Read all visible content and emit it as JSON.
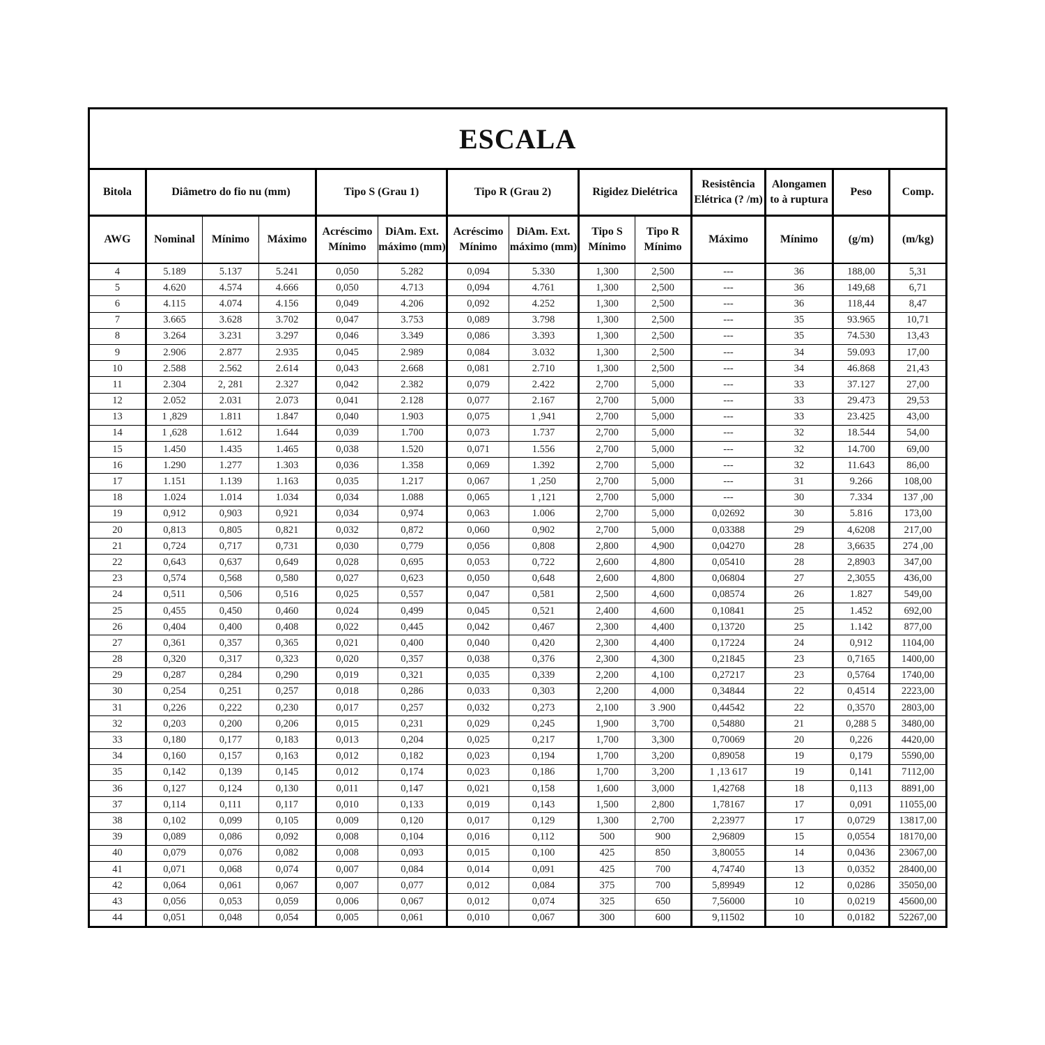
{
  "title": "ESCALA",
  "header_row1": [
    "Bitola",
    "Diâmetro do fio nu (mm)",
    "Tipo S (Grau 1)",
    "Tipo R (Grau 2)",
    "Rigidez Dielétrica",
    "Resistência Elétrica (? /m)",
    "Alongamen to à ruptura",
    "Peso",
    "Comp."
  ],
  "header_row2": [
    "AWG",
    "Nominal",
    "Mínimo",
    "Máximo",
    "Acréscimo Mínimo",
    "DiAm. Ext. máximo (mm)",
    "Acréscimo Mínimo",
    "DiAm. Ext. máximo (mm)",
    "Tipo S Mínimo",
    "Tipo R Mínimo",
    "Máximo",
    "Mínimo",
    "(g/m)",
    "(m/kg)"
  ],
  "rows": [
    [
      "4",
      "5.189",
      "5.137",
      "5.241",
      "0,050",
      "5.282",
      "0,094",
      "5.330",
      "1,300",
      "2,500",
      "---",
      "36",
      "188,00",
      "5,31"
    ],
    [
      "5",
      "4.620",
      "4.574",
      "4.666",
      "0,050",
      "4.713",
      "0,094",
      "4.761",
      "1,300",
      "2,500",
      "---",
      "36",
      "149,68",
      "6,71"
    ],
    [
      "6",
      "4.115",
      "4.074",
      "4.156",
      "0,049",
      "4.206",
      "0,092",
      "4.252",
      "1,300",
      "2,500",
      "---",
      "36",
      "118,44",
      "8,47"
    ],
    [
      "7",
      "3.665",
      "3.628",
      "3.702",
      "0,047",
      "3.753",
      "0,089",
      "3.798",
      "1,300",
      "2,500",
      "---",
      "35",
      "93.965",
      "10,71"
    ],
    [
      "8",
      "3.264",
      "3.231",
      "3.297",
      "0,046",
      "3.349",
      "0,086",
      "3.393",
      "1,300",
      "2,500",
      "---",
      "35",
      "74.530",
      "13,43"
    ],
    [
      "9",
      "2.906",
      "2.877",
      "2.935",
      "0,045",
      "2.989",
      "0,084",
      "3.032",
      "1,300",
      "2,500",
      "---",
      "34",
      "59.093",
      "17,00"
    ],
    [
      "10",
      "2.588",
      "2.562",
      "2.614",
      "0,043",
      "2.668",
      "0,081",
      "2.710",
      "1,300",
      "2,500",
      "---",
      "34",
      "46.868",
      "21,43"
    ],
    [
      "11",
      "2.304",
      "2, 281",
      "2.327",
      "0,042",
      "2.382",
      "0,079",
      "2.422",
      "2,700",
      "5,000",
      "---",
      "33",
      "37.127",
      "27,00"
    ],
    [
      "12",
      "2.052",
      "2.031",
      "2.073",
      "0,041",
      "2.128",
      "0,077",
      "2.167",
      "2,700",
      "5,000",
      "---",
      "33",
      "29.473",
      "29,53"
    ],
    [
      "13",
      "1 ,829",
      "1.811",
      "1.847",
      "0,040",
      "1.903",
      "0,075",
      "1 ,941",
      "2,700",
      "5,000",
      "---",
      "33",
      "23.425",
      "43,00"
    ],
    [
      "14",
      "1 ,628",
      "1.612",
      "1.644",
      "0,039",
      "1.700",
      "0,073",
      "1.737",
      "2,700",
      "5,000",
      "---",
      "32",
      "18.544",
      "54,00"
    ],
    [
      "15",
      "1.450",
      "1.435",
      "1.465",
      "0,038",
      "1.520",
      "0,071",
      "1.556",
      "2,700",
      "5,000",
      "---",
      "32",
      "14.700",
      "69,00"
    ],
    [
      "16",
      "1.290",
      "1.277",
      "1.303",
      "0,036",
      "1.358",
      "0,069",
      "1.392",
      "2,700",
      "5,000",
      "---",
      "32",
      "11.643",
      "86,00"
    ],
    [
      "17",
      "1.151",
      "1.139",
      "1.163",
      "0,035",
      "1.217",
      "0,067",
      "1 ,250",
      "2,700",
      "5,000",
      "---",
      "31",
      "9.266",
      "108,00"
    ],
    [
      "18",
      "1.024",
      "1.014",
      "1.034",
      "0,034",
      "1.088",
      "0,065",
      "1 ,121",
      "2,700",
      "5,000",
      "---",
      "30",
      "7.334",
      "137 ,00"
    ],
    [
      "19",
      "0,912",
      "0,903",
      "0,921",
      "0,034",
      "0,974",
      "0,063",
      "1.006",
      "2,700",
      "5,000",
      "0,02692",
      "30",
      "5.816",
      "173,00"
    ],
    [
      "20",
      "0,813",
      "0,805",
      "0,821",
      "0,032",
      "0,872",
      "0,060",
      "0,902",
      "2,700",
      "5,000",
      "0,03388",
      "29",
      "4,6208",
      "217,00"
    ],
    [
      "21",
      "0,724",
      "0,717",
      "0,731",
      "0,030",
      "0,779",
      "0,056",
      "0,808",
      "2,800",
      "4,900",
      "0,04270",
      "28",
      "3,6635",
      "274 ,00"
    ],
    [
      "22",
      "0,643",
      "0,637",
      "0,649",
      "0,028",
      "0,695",
      "0,053",
      "0,722",
      "2,600",
      "4,800",
      "0,05410",
      "28",
      "2,8903",
      "347,00"
    ],
    [
      "23",
      "0,574",
      "0,568",
      "0,580",
      "0,027",
      "0,623",
      "0,050",
      "0,648",
      "2,600",
      "4,800",
      "0,06804",
      "27",
      "2,3055",
      "436,00"
    ],
    [
      "24",
      "0,511",
      "0,506",
      "0,516",
      "0,025",
      "0,557",
      "0,047",
      "0,581",
      "2,500",
      "4,600",
      "0,08574",
      "26",
      "1.827",
      "549,00"
    ],
    [
      "25",
      "0,455",
      "0,450",
      "0,460",
      "0,024",
      "0,499",
      "0,045",
      "0,521",
      "2,400",
      "4,600",
      "0,10841",
      "25",
      "1.452",
      "692,00"
    ],
    [
      "26",
      "0,404",
      "0,400",
      "0,408",
      "0,022",
      "0,445",
      "0,042",
      "0,467",
      "2,300",
      "4,400",
      "0,13720",
      "25",
      "1.142",
      "877,00"
    ],
    [
      "27",
      "0,361",
      "0,357",
      "0,365",
      "0,021",
      "0,400",
      "0,040",
      "0,420",
      "2,300",
      "4,400",
      "0,17224",
      "24",
      "0,912",
      "1104,00"
    ],
    [
      "28",
      "0,320",
      "0,317",
      "0,323",
      "0,020",
      "0,357",
      "0,038",
      "0,376",
      "2,300",
      "4,300",
      "0,21845",
      "23",
      "0,7165",
      "1400,00"
    ],
    [
      "29",
      "0,287",
      "0,284",
      "0,290",
      "0,019",
      "0,321",
      "0,035",
      "0,339",
      "2,200",
      "4,100",
      "0,27217",
      "23",
      "0,5764",
      "1740,00"
    ],
    [
      "30",
      "0,254",
      "0,251",
      "0,257",
      "0,018",
      "0,286",
      "0,033",
      "0,303",
      "2,200",
      "4,000",
      "0,34844",
      "22",
      "0,4514",
      "2223,00"
    ],
    [
      "31",
      "0,226",
      "0,222",
      "0,230",
      "0,017",
      "0,257",
      "0,032",
      "0,273",
      "2,100",
      "3 .900",
      "0,44542",
      "22",
      "0,3570",
      "2803,00"
    ],
    [
      "32",
      "0,203",
      "0,200",
      "0,206",
      "0,015",
      "0,231",
      "0,029",
      "0,245",
      "1,900",
      "3,700",
      "0,54880",
      "21",
      "0,288 5",
      "3480,00"
    ],
    [
      "33",
      "0,180",
      "0,177",
      "0,183",
      "0,013",
      "0,204",
      "0,025",
      "0,217",
      "1,700",
      "3,300",
      "0,70069",
      "20",
      "0,226",
      "4420,00"
    ],
    [
      "34",
      "0,160",
      "0,157",
      "0,163",
      "0,012",
      "0,182",
      "0,023",
      "0,194",
      "1,700",
      "3,200",
      "0,89058",
      "19",
      "0,179",
      "5590,00"
    ],
    [
      "35",
      "0,142",
      "0,139",
      "0,145",
      "0,012",
      "0,174",
      "0,023",
      "0,186",
      "1,700",
      "3,200",
      "1 ,13 617",
      "19",
      "0,141",
      "7112,00"
    ],
    [
      "36",
      "0,127",
      "0,124",
      "0,130",
      "0,011",
      "0,147",
      "0,021",
      "0,158",
      "1,600",
      "3,000",
      "1,42768",
      "18",
      "0,113",
      "8891,00"
    ],
    [
      "37",
      "0,114",
      "0,111",
      "0,117",
      "0,010",
      "0,133",
      "0,019",
      "0,143",
      "1,500",
      "2,800",
      "1,78167",
      "17",
      "0,091",
      "11055,00"
    ],
    [
      "38",
      "0,102",
      "0,099",
      "0,105",
      "0,009",
      "0,120",
      "0,017",
      "0,129",
      "1,300",
      "2,700",
      "2,23977",
      "17",
      "0,0729",
      "13817,00"
    ],
    [
      "39",
      "0,089",
      "0,086",
      "0,092",
      "0,008",
      "0,104",
      "0,016",
      "0,112",
      "500",
      "900",
      "2,96809",
      "15",
      "0,0554",
      "18170,00"
    ],
    [
      "40",
      "0,079",
      "0,076",
      "0,082",
      "0,008",
      "0,093",
      "0,015",
      "0,100",
      "425",
      "850",
      "3,80055",
      "14",
      "0,0436",
      "23067,00"
    ],
    [
      "41",
      "0,071",
      "0,068",
      "0,074",
      "0,007",
      "0,084",
      "0,014",
      "0,091",
      "425",
      "700",
      "4,74740",
      "13",
      "0,0352",
      "28400,00"
    ],
    [
      "42",
      "0,064",
      "0,061",
      "0,067",
      "0,007",
      "0,077",
      "0,012",
      "0,084",
      "375",
      "700",
      "5,89949",
      "12",
      "0,0286",
      "35050,00"
    ],
    [
      "43",
      "0,056",
      "0,053",
      "0,059",
      "0,006",
      "0,067",
      "0,012",
      "0,074",
      "325",
      "650",
      "7,56000",
      "10",
      "0,0219",
      "45600,00"
    ],
    [
      "44",
      "0,051",
      "0,048",
      "0,054",
      "0,005",
      "0,061",
      "0,010",
      "0,067",
      "300",
      "600",
      "9,11502",
      "10",
      "0,0182",
      "52267,00"
    ]
  ]
}
